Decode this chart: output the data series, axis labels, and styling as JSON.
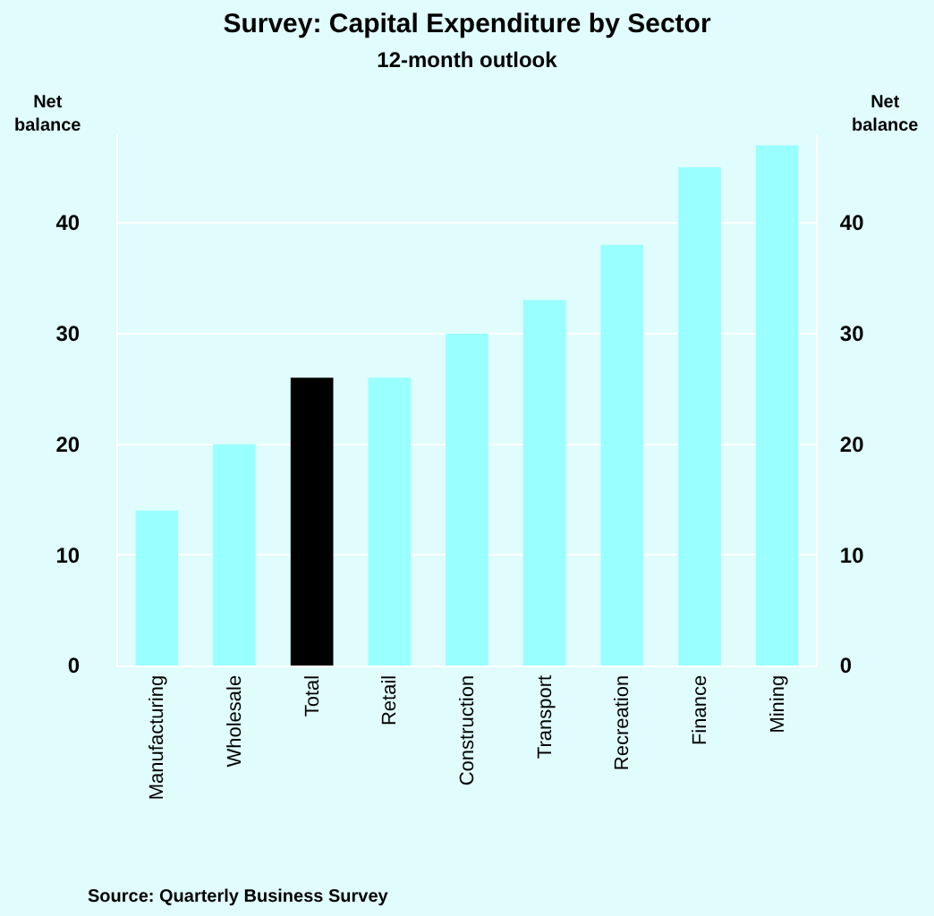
{
  "chart_data": {
    "type": "bar",
    "title": "Survey: Capital Expenditure by Sector",
    "subtitle": "12-month outlook",
    "ylabel": "Net balance",
    "y2label": "Net balance",
    "categories": [
      "Manufacturing",
      "Wholesale",
      "Total",
      "Retail",
      "Construction",
      "Transport",
      "Recreation",
      "Finance",
      "Mining"
    ],
    "values": [
      14,
      20,
      26,
      26,
      30,
      33,
      38,
      45,
      47
    ],
    "colors": [
      "#99ffff",
      "#99ffff",
      "#000000",
      "#99ffff",
      "#99ffff",
      "#99ffff",
      "#99ffff",
      "#99ffff",
      "#99ffff"
    ],
    "ylim": [
      0,
      48
    ],
    "yticks": [
      0,
      10,
      20,
      30,
      40
    ],
    "y2lim": [
      0,
      48
    ],
    "y2ticks": [
      0,
      10,
      20,
      30,
      40
    ],
    "grid": "y",
    "annotations": [
      "Source: Quarterly Business Survey"
    ]
  }
}
